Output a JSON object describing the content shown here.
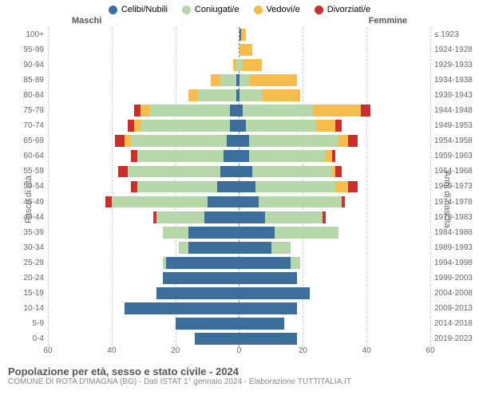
{
  "legend": [
    {
      "label": "Celibi/Nubili",
      "color": "#3b6e9a"
    },
    {
      "label": "Coniugati/e",
      "color": "#b6d7a8"
    },
    {
      "label": "Vedovi/e",
      "color": "#f6bd4c"
    },
    {
      "label": "Divorziati/e",
      "color": "#cc2e2b"
    }
  ],
  "colors": {
    "single": "#3b6e9a",
    "married": "#b6d7a8",
    "widowed": "#f6bd4c",
    "divorced": "#cc2e2b",
    "grid": "#cccccc",
    "center_grid": "#888888",
    "text": "#666666",
    "background": "#ffffff"
  },
  "axis": {
    "x_max": 60,
    "x_ticks": [
      60,
      40,
      20,
      0,
      20,
      40,
      60
    ],
    "y_left_title": "Fasce di età",
    "y_right_title": "Anni di nascita"
  },
  "side_labels": {
    "male": "Maschi",
    "female": "Femmine"
  },
  "footer": {
    "title": "Popolazione per età, sesso e stato civile - 2024",
    "sub": "COMUNE DI ROTA D'IMAGNA (BG) - Dati ISTAT 1° gennaio 2024 - Elaborazione TUTTITALIA.IT"
  },
  "rows": [
    {
      "age": "100+",
      "birth": "≤ 1923",
      "m": {
        "s": 0,
        "c": 0,
        "w": 0,
        "d": 0
      },
      "f": {
        "s": 0.5,
        "c": 0,
        "w": 1.5,
        "d": 0
      }
    },
    {
      "age": "95-99",
      "birth": "1924-1928",
      "m": {
        "s": 0,
        "c": 0,
        "w": 0,
        "d": 0
      },
      "f": {
        "s": 0,
        "c": 0,
        "w": 4,
        "d": 0
      }
    },
    {
      "age": "90-94",
      "birth": "1929-1933",
      "m": {
        "s": 0,
        "c": 1,
        "w": 1,
        "d": 0
      },
      "f": {
        "s": 0,
        "c": 1,
        "w": 6,
        "d": 0
      }
    },
    {
      "age": "85-89",
      "birth": "1934-1938",
      "m": {
        "s": 1,
        "c": 5,
        "w": 3,
        "d": 0
      },
      "f": {
        "s": 0,
        "c": 3,
        "w": 15,
        "d": 0
      }
    },
    {
      "age": "80-84",
      "birth": "1939-1943",
      "m": {
        "s": 1,
        "c": 12,
        "w": 3,
        "d": 0
      },
      "f": {
        "s": 0,
        "c": 7,
        "w": 12,
        "d": 0
      }
    },
    {
      "age": "75-79",
      "birth": "1944-1948",
      "m": {
        "s": 3,
        "c": 25,
        "w": 3,
        "d": 2
      },
      "f": {
        "s": 1,
        "c": 22,
        "w": 15,
        "d": 3
      }
    },
    {
      "age": "70-74",
      "birth": "1949-1953",
      "m": {
        "s": 3,
        "c": 28,
        "w": 2,
        "d": 2
      },
      "f": {
        "s": 2,
        "c": 22,
        "w": 6,
        "d": 2
      }
    },
    {
      "age": "65-69",
      "birth": "1954-1958",
      "m": {
        "s": 4,
        "c": 30,
        "w": 2,
        "d": 3
      },
      "f": {
        "s": 3,
        "c": 28,
        "w": 3,
        "d": 3
      }
    },
    {
      "age": "60-64",
      "birth": "1959-1963",
      "m": {
        "s": 5,
        "c": 27,
        "w": 0,
        "d": 2
      },
      "f": {
        "s": 3,
        "c": 24,
        "w": 2,
        "d": 1
      }
    },
    {
      "age": "55-59",
      "birth": "1964-1968",
      "m": {
        "s": 6,
        "c": 29,
        "w": 0,
        "d": 3
      },
      "f": {
        "s": 4,
        "c": 25,
        "w": 1,
        "d": 2
      }
    },
    {
      "age": "50-54",
      "birth": "1969-1973",
      "m": {
        "s": 7,
        "c": 25,
        "w": 0,
        "d": 2
      },
      "f": {
        "s": 5,
        "c": 25,
        "w": 4,
        "d": 3
      }
    },
    {
      "age": "45-49",
      "birth": "1974-1978",
      "m": {
        "s": 10,
        "c": 30,
        "w": 0,
        "d": 2
      },
      "f": {
        "s": 6,
        "c": 26,
        "w": 0,
        "d": 1
      }
    },
    {
      "age": "40-44",
      "birth": "1979-1983",
      "m": {
        "s": 11,
        "c": 15,
        "w": 0,
        "d": 1
      },
      "f": {
        "s": 8,
        "c": 18,
        "w": 0,
        "d": 1
      }
    },
    {
      "age": "35-39",
      "birth": "1984-1988",
      "m": {
        "s": 16,
        "c": 8,
        "w": 0,
        "d": 0
      },
      "f": {
        "s": 11,
        "c": 20,
        "w": 0,
        "d": 0
      }
    },
    {
      "age": "30-34",
      "birth": "1989-1993",
      "m": {
        "s": 16,
        "c": 3,
        "w": 0,
        "d": 0
      },
      "f": {
        "s": 10,
        "c": 6,
        "w": 0,
        "d": 0
      }
    },
    {
      "age": "25-29",
      "birth": "1994-1998",
      "m": {
        "s": 23,
        "c": 1,
        "w": 0,
        "d": 0
      },
      "f": {
        "s": 16,
        "c": 3,
        "w": 0,
        "d": 0
      }
    },
    {
      "age": "20-24",
      "birth": "1999-2003",
      "m": {
        "s": 24,
        "c": 0,
        "w": 0,
        "d": 0
      },
      "f": {
        "s": 18,
        "c": 0,
        "w": 0,
        "d": 0
      }
    },
    {
      "age": "15-19",
      "birth": "2004-2008",
      "m": {
        "s": 26,
        "c": 0,
        "w": 0,
        "d": 0
      },
      "f": {
        "s": 22,
        "c": 0,
        "w": 0,
        "d": 0
      }
    },
    {
      "age": "10-14",
      "birth": "2009-2013",
      "m": {
        "s": 36,
        "c": 0,
        "w": 0,
        "d": 0
      },
      "f": {
        "s": 18,
        "c": 0,
        "w": 0,
        "d": 0
      }
    },
    {
      "age": "5-9",
      "birth": "2014-2018",
      "m": {
        "s": 20,
        "c": 0,
        "w": 0,
        "d": 0
      },
      "f": {
        "s": 14,
        "c": 0,
        "w": 0,
        "d": 0
      }
    },
    {
      "age": "0-4",
      "birth": "2019-2023",
      "m": {
        "s": 14,
        "c": 0,
        "w": 0,
        "d": 0
      },
      "f": {
        "s": 18,
        "c": 0,
        "w": 0,
        "d": 0
      }
    }
  ]
}
